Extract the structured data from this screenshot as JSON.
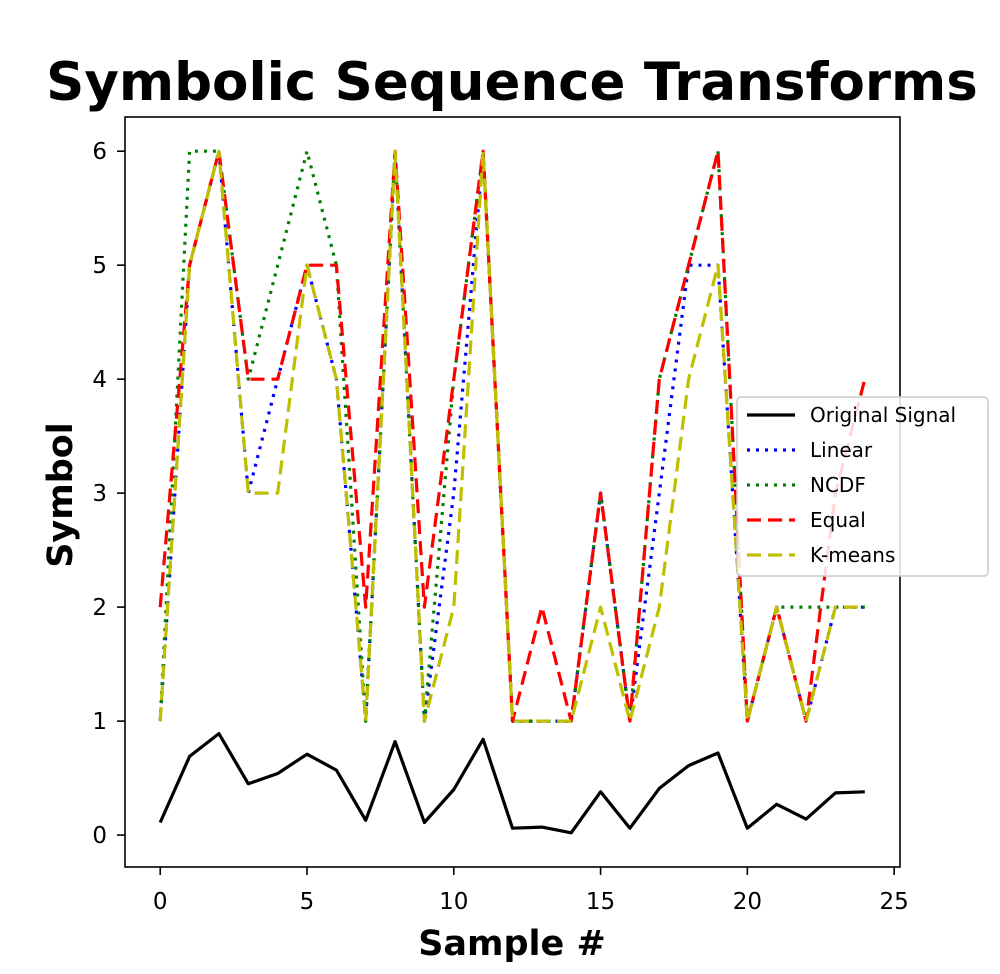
{
  "chart_data": {
    "type": "line",
    "title": "Symbolic Sequence Transforms",
    "xlabel": "Sample #",
    "ylabel": "Symbol",
    "xlim": [
      -1.2,
      25.2
    ],
    "ylim": [
      -0.28,
      6.3
    ],
    "x_ticks": [
      0,
      5,
      10,
      15,
      20,
      25
    ],
    "y_ticks": [
      0,
      1,
      2,
      3,
      4,
      5,
      6
    ],
    "grid": false,
    "legend_position": "center-right",
    "x": [
      0,
      1,
      2,
      3,
      4,
      5,
      6,
      7,
      8,
      9,
      10,
      11,
      12,
      13,
      14,
      15,
      16,
      17,
      18,
      19,
      20,
      21,
      22,
      23,
      24
    ],
    "series": [
      {
        "name": "Original Signal",
        "color": "#000000",
        "dash": "solid",
        "values": [
          0.11,
          0.69,
          0.89,
          0.45,
          0.54,
          0.71,
          0.57,
          0.13,
          0.82,
          0.11,
          0.4,
          0.84,
          0.06,
          0.07,
          0.02,
          0.38,
          0.06,
          0.41,
          0.61,
          0.72,
          0.06,
          0.27,
          0.14,
          0.37,
          0.38
        ]
      },
      {
        "name": "Linear",
        "color": "#0000ff",
        "dash": "dotted",
        "values": [
          1,
          5,
          6,
          3,
          4,
          5,
          4,
          1,
          6,
          1,
          3,
          6,
          1,
          1,
          1,
          3,
          1,
          3,
          5,
          5,
          1,
          2,
          1,
          2,
          2
        ]
      },
      {
        "name": "NCDF",
        "color": "#008000",
        "dash": "dotted",
        "values": [
          1,
          6,
          6,
          4,
          5,
          6,
          5,
          1,
          6,
          1,
          4,
          6,
          1,
          1,
          1,
          3,
          1,
          4,
          5,
          6,
          1,
          2,
          2,
          2,
          2
        ]
      },
      {
        "name": "Equal",
        "color": "#ff0000",
        "dash": "dashed",
        "values": [
          2,
          5,
          6,
          4,
          4,
          5,
          5,
          2,
          6,
          2,
          4,
          6,
          1,
          2,
          1,
          3,
          1,
          4,
          5,
          6,
          1,
          2,
          1,
          3,
          4
        ]
      },
      {
        "name": "K-means",
        "color": "#bfbf00",
        "dash": "dashed",
        "values": [
          1,
          5,
          6,
          3,
          3,
          5,
          4,
          1,
          6,
          1,
          2,
          6,
          1,
          1,
          1,
          2,
          1,
          2,
          4,
          5,
          1,
          2,
          1,
          2,
          2
        ]
      }
    ]
  }
}
